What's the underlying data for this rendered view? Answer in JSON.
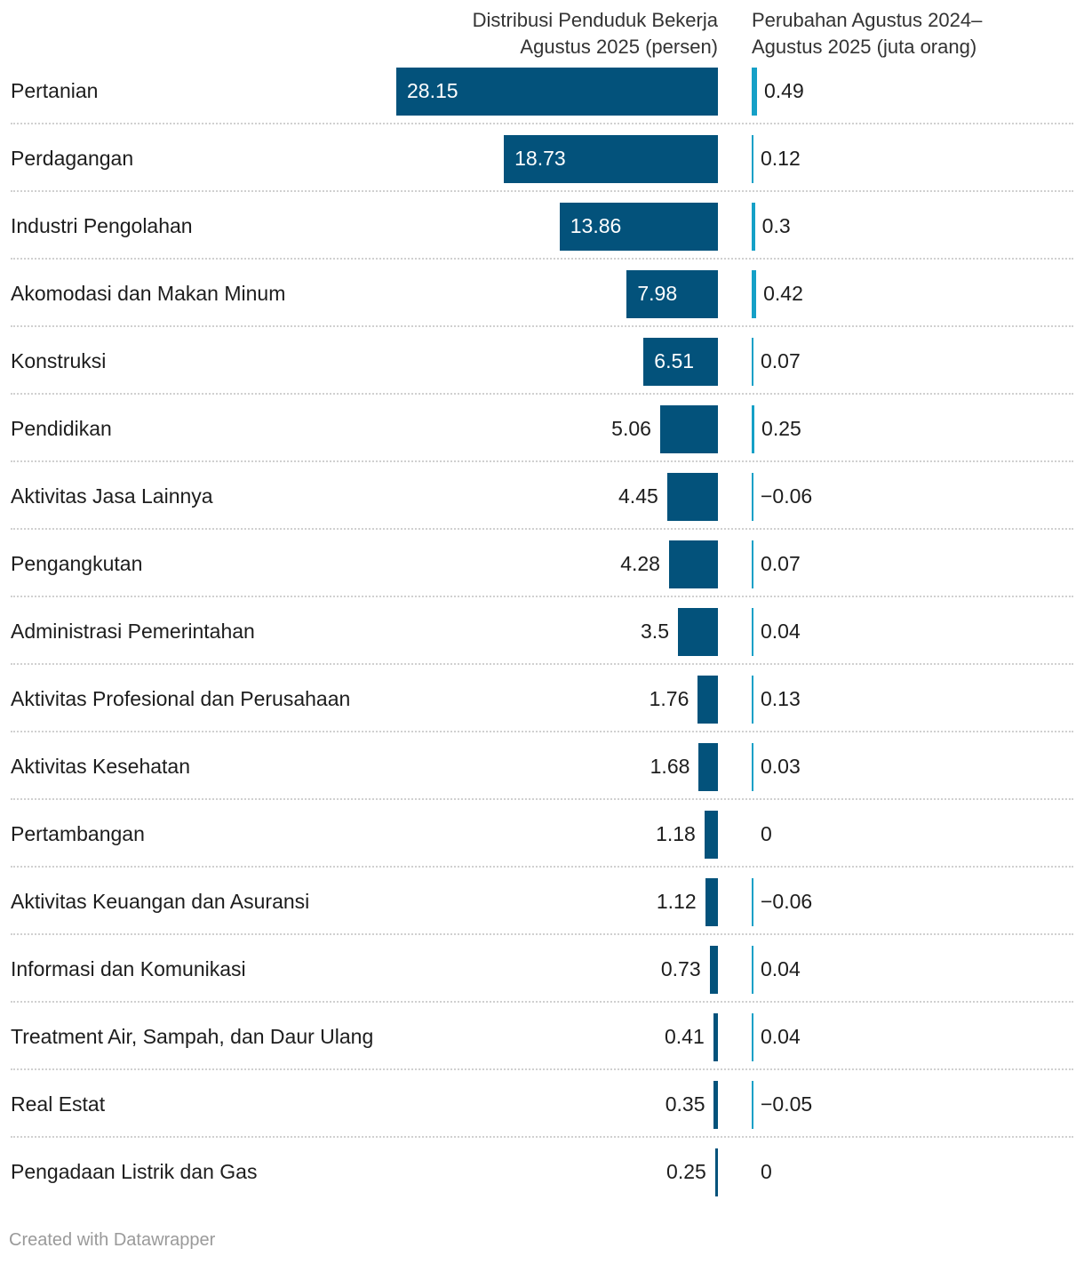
{
  "headers": {
    "distribution": "Distribusi Penduduk Bekerja\nAgustus 2025 (persen)",
    "change": "Perubahan Agustus 2024–\nAgustus 2025 (juta orang)"
  },
  "footer": "Created with Datawrapper",
  "colors": {
    "distribution_bar": "#03527b",
    "change_bar": "#15a0c7"
  },
  "chart_data": {
    "type": "bar",
    "categories": [
      "Pertanian",
      "Perdagangan",
      "Industri Pengolahan",
      "Akomodasi dan Makan Minum",
      "Konstruksi",
      "Pendidikan",
      "Aktivitas Jasa Lainnya",
      "Pengangkutan",
      "Administrasi Pemerintahan",
      "Aktivitas Profesional dan Perusahaan",
      "Aktivitas Kesehatan",
      "Pertambangan",
      "Aktivitas Keuangan dan Asuransi",
      "Informasi dan Komunikasi",
      "Treatment Air, Sampah, dan Daur Ulang",
      "Real Estat",
      "Pengadaan Listrik dan Gas"
    ],
    "series": [
      {
        "name": "Distribusi Penduduk Bekerja Agustus 2025 (persen)",
        "values": [
          28.15,
          18.73,
          13.86,
          7.98,
          6.51,
          5.06,
          4.45,
          4.28,
          3.5,
          1.76,
          1.68,
          1.18,
          1.12,
          0.73,
          0.41,
          0.35,
          0.25
        ],
        "labels": [
          "28.15",
          "18.73",
          "13.86",
          "7.98",
          "6.51",
          "5.06",
          "4.45",
          "4.28",
          "3.5",
          "1.76",
          "1.68",
          "1.18",
          "1.12",
          "0.73",
          "0.41",
          "0.35",
          "0.25"
        ]
      },
      {
        "name": "Perubahan Agustus 2024–Agustus 2025 (juta orang)",
        "values": [
          0.49,
          0.12,
          0.3,
          0.42,
          0.07,
          0.25,
          -0.06,
          0.07,
          0.04,
          0.13,
          0.03,
          0,
          -0.06,
          0.04,
          0.04,
          -0.05,
          0
        ],
        "labels": [
          "0.49",
          "0.12",
          "0.3",
          "0.42",
          "0.07",
          "0.25",
          "−0.06",
          "0.07",
          "0.04",
          "0.13",
          "0.03",
          "0",
          "−0.06",
          "0.04",
          "0.04",
          "−0.05",
          "0"
        ]
      }
    ],
    "legend": "none",
    "grid": false
  }
}
